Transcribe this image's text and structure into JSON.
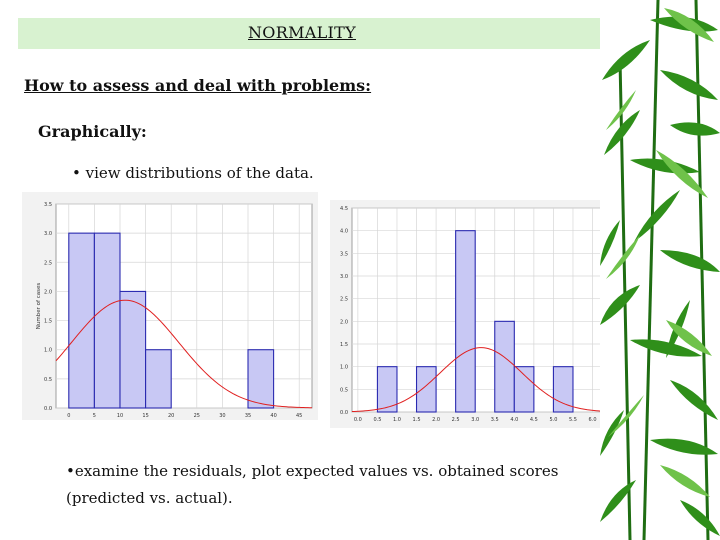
{
  "slide": {
    "title": "NORMALITY",
    "heading": "How to assess and deal with problems:",
    "subheading": "Graphically:",
    "bullet1": "• view distributions of the data.",
    "bullet2": "•examine the residuals, plot expected  values vs. obtained scores (predicted vs. actual)."
  },
  "chart_data": [
    {
      "type": "bar",
      "xlabel": "",
      "ylabel": "Number of cases",
      "bin_starts": [
        0,
        5,
        10,
        15,
        20,
        25,
        30,
        35,
        40
      ],
      "bin_width": 5,
      "values": [
        3,
        3,
        2,
        1,
        0,
        0,
        0,
        1,
        0
      ],
      "xticks": [
        "0",
        "5",
        "10",
        "15",
        "20",
        "25",
        "30",
        "35",
        "40",
        "45"
      ],
      "yticks": [
        "0.0",
        "0.5",
        "1.0",
        "1.5",
        "2.0",
        "2.5",
        "3.0",
        "3.5"
      ],
      "xlim": [
        -2.5,
        47.5
      ],
      "ylim": [
        0,
        3.5
      ],
      "normal_curve": {
        "mean": 11,
        "sd": 10.5,
        "peak": 1.85
      },
      "bar_color": "#c8c8f4",
      "curve_color": "#e02020",
      "grid": true
    },
    {
      "type": "bar",
      "xlabel": "",
      "ylabel": "",
      "bin_starts": [
        0.5,
        1.0,
        1.5,
        2.0,
        2.5,
        3.0,
        3.5,
        4.0,
        4.5,
        5.0
      ],
      "bin_width": 0.5,
      "values": [
        1,
        0,
        1,
        0,
        4,
        0,
        2,
        1,
        0,
        1
      ],
      "xticks": [
        "0.0",
        "0.5",
        "1.0",
        "1.5",
        "2.0",
        "2.5",
        "3.0",
        "3.5",
        "4.0",
        "4.5",
        "5.0",
        "5.5",
        "6.0",
        "6.5"
      ],
      "yticks": [
        "0.0",
        "0.5",
        "1.0",
        "1.5",
        "2.0",
        "2.5",
        "3.0",
        "3.5",
        "4.0",
        "4.5"
      ],
      "xlim": [
        -0.15,
        6.6
      ],
      "ylim": [
        0,
        4.5
      ],
      "normal_curve": {
        "mean": 3.15,
        "sd": 1.05,
        "peak": 1.42
      },
      "bar_color": "#c8c8f4",
      "curve_color": "#e02020",
      "grid": true
    }
  ]
}
